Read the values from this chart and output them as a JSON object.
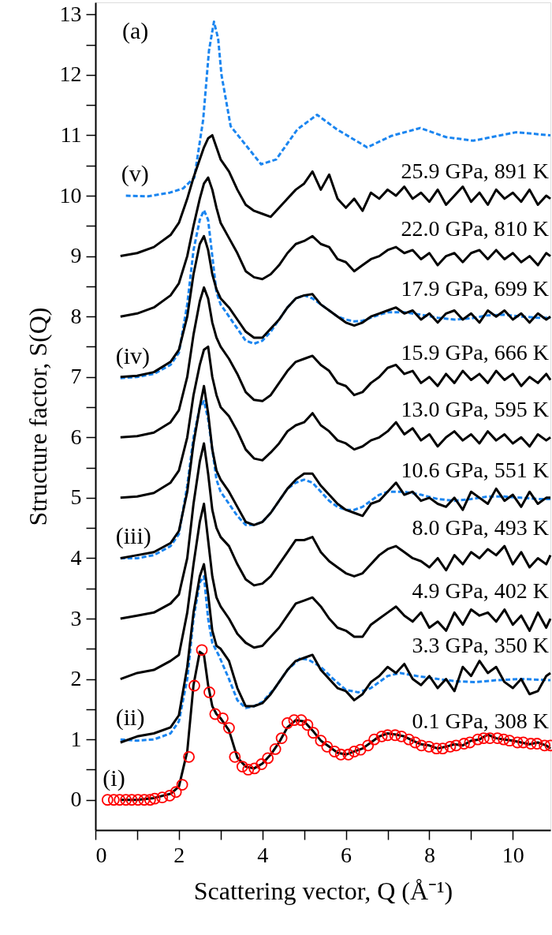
{
  "chart_data": {
    "type": "line",
    "xlabel": "Scattering vector, Q (Å⁻¹)",
    "ylabel": "Structure factor, S(Q)",
    "xlim": [
      0,
      10.9
    ],
    "ylim": [
      -0.5,
      13.2
    ],
    "xticks": [
      0,
      {
        "value": 1,
        "label": null
      },
      2,
      {
        "value": 3,
        "label": null
      },
      4,
      {
        "value": 5,
        "label": null
      },
      6,
      {
        "value": 7,
        "label": null
      },
      8,
      {
        "value": 9,
        "label": null
      },
      10
    ],
    "yticks": [
      0,
      {
        "value": 0.5,
        "label": null
      },
      1,
      {
        "value": 1.5,
        "label": null
      },
      2,
      {
        "value": 2.5,
        "label": null
      },
      3,
      {
        "value": 3.5,
        "label": null
      },
      4,
      {
        "value": 4.5,
        "label": null
      },
      5,
      {
        "value": 5.5,
        "label": null
      },
      6,
      {
        "value": 6.5,
        "label": null
      },
      7,
      {
        "value": 7.5,
        "label": null
      },
      8,
      {
        "value": 8.5,
        "label": null
      },
      9,
      {
        "value": 9.5,
        "label": null
      },
      10,
      {
        "value": 10.5,
        "label": null
      },
      11,
      {
        "value": 11.5,
        "label": null
      },
      12,
      {
        "value": 12.5,
        "label": null
      },
      13
    ],
    "x": [
      0.6,
      1.0,
      1.4,
      1.8,
      2.0,
      2.2,
      2.35,
      2.5,
      2.6,
      2.7,
      2.8,
      2.9,
      3.0,
      3.2,
      3.4,
      3.6,
      3.8,
      4.0,
      4.2,
      4.4,
      4.6,
      4.8,
      5.0,
      5.2,
      5.4,
      5.6,
      5.8,
      6.0,
      6.2,
      6.4,
      6.6,
      6.8,
      7.0,
      7.2,
      7.4,
      7.6,
      7.8,
      8.0,
      8.2,
      8.4,
      8.6,
      8.8,
      9.0,
      9.2,
      9.4,
      9.6,
      9.8,
      10.0,
      10.2,
      10.4,
      10.6,
      10.8,
      10.9
    ],
    "annotations": [
      "(a)"
    ],
    "series": [
      {
        "name": "(ii)",
        "color": "#1a85f0",
        "line_style": "dashed",
        "x": [
          0.6,
          1.0,
          1.4,
          1.8,
          2.0,
          2.2,
          2.35,
          2.5,
          2.6,
          2.7,
          2.8,
          2.95,
          3.2,
          3.4,
          3.6,
          3.8,
          4.0,
          4.3,
          4.6,
          4.9,
          5.1,
          5.4,
          5.7,
          6.0,
          6.3,
          6.6,
          7.0,
          7.3,
          7.7,
          8.2,
          8.7,
          9.1,
          9.6,
          10.2,
          10.9
        ],
        "values": [
          1.0,
          0.98,
          1.0,
          1.1,
          1.3,
          2.0,
          3.0,
          3.6,
          3.7,
          3.0,
          2.6,
          2.4,
          2.0,
          1.65,
          1.52,
          1.55,
          1.62,
          1.85,
          2.15,
          2.34,
          2.32,
          2.2,
          2.0,
          1.82,
          1.78,
          1.85,
          2.05,
          2.1,
          2.05,
          2.0,
          1.96,
          1.95,
          1.98,
          2.0,
          1.98
        ]
      },
      {
        "name": "(iii)",
        "color": "#1a85f0",
        "line_style": "dashed",
        "x": [
          0.6,
          1.0,
          1.4,
          1.8,
          2.0,
          2.2,
          2.35,
          2.5,
          2.6,
          2.7,
          2.8,
          2.9,
          3.0,
          3.2,
          3.4,
          3.6,
          3.8,
          4.0,
          4.2,
          4.4,
          4.6,
          4.8,
          5.0,
          5.2,
          5.4,
          5.6,
          5.8,
          6.0,
          6.2,
          6.4,
          6.6,
          6.8,
          7.0,
          7.4,
          7.8,
          8.2,
          8.6,
          9.0,
          9.4,
          9.8,
          10.2,
          10.6,
          10.9
        ],
        "values": [
          4.0,
          4.0,
          4.05,
          4.2,
          4.4,
          5.2,
          6.0,
          6.5,
          6.6,
          6.3,
          5.8,
          5.3,
          5.1,
          4.9,
          4.7,
          4.55,
          4.55,
          4.6,
          4.75,
          4.95,
          5.15,
          5.25,
          5.3,
          5.25,
          5.1,
          4.95,
          4.85,
          4.8,
          4.8,
          4.85,
          4.95,
          5.05,
          5.1,
          5.1,
          5.05,
          4.98,
          4.95,
          4.98,
          5.02,
          5.02,
          5.0,
          4.98,
          4.98
        ]
      },
      {
        "name": "(iv)",
        "color": "#1a85f0",
        "line_style": "dashed",
        "x": [
          0.6,
          1.0,
          1.4,
          1.8,
          2.0,
          2.2,
          2.35,
          2.5,
          2.6,
          2.7,
          2.8,
          2.9,
          3.0,
          3.2,
          3.4,
          3.6,
          3.8,
          4.0,
          4.2,
          4.4,
          4.6,
          4.8,
          5.0,
          5.2,
          5.4,
          5.6,
          5.8,
          6.0,
          6.2,
          6.4,
          6.6,
          6.8,
          7.0,
          7.4,
          7.8,
          8.2,
          8.6,
          9.0,
          9.4,
          9.8,
          10.2,
          10.6,
          10.9
        ],
        "values": [
          6.98,
          7.0,
          7.05,
          7.2,
          7.4,
          8.2,
          9.1,
          9.6,
          9.76,
          9.6,
          9.0,
          8.4,
          8.2,
          8.0,
          7.8,
          7.6,
          7.55,
          7.6,
          7.75,
          7.95,
          8.15,
          8.3,
          8.35,
          8.3,
          8.2,
          8.1,
          8.0,
          7.95,
          7.92,
          7.93,
          7.98,
          8.03,
          8.07,
          8.07,
          8.03,
          7.98,
          7.95,
          7.97,
          8.02,
          8.03,
          8.0,
          7.98,
          7.98
        ]
      },
      {
        "name": "(v)",
        "color": "#1a85f0",
        "line_style": "dashed",
        "x": [
          0.73,
          1.27,
          1.78,
          2.1,
          2.37,
          2.58,
          2.72,
          2.84,
          2.94,
          3.02,
          3.24,
          3.53,
          3.97,
          4.33,
          4.84,
          5.31,
          5.78,
          6.51,
          7.09,
          7.78,
          8.4,
          9.05,
          10.07,
          10.9
        ],
        "values": [
          10.0,
          9.99,
          10.05,
          10.12,
          10.3,
          11.25,
          12.4,
          12.88,
          12.6,
          12.0,
          11.15,
          10.9,
          10.52,
          10.6,
          11.1,
          11.34,
          11.1,
          10.8,
          10.99,
          11.12,
          10.97,
          10.91,
          11.05,
          11.0
        ]
      },
      {
        "name": "(i)",
        "type": "scatter",
        "marker": "circle",
        "color": "#ff0000",
        "x": [
          0.29,
          0.44,
          0.58,
          0.73,
          0.87,
          1.02,
          1.17,
          1.31,
          1.42,
          1.6,
          1.78,
          1.93,
          2.08,
          2.24,
          2.37,
          2.55,
          2.73,
          2.87,
          3.05,
          3.2,
          3.34,
          3.52,
          3.66,
          3.81,
          3.98,
          4.13,
          4.31,
          4.46,
          4.6,
          4.76,
          4.93,
          5.08,
          5.22,
          5.4,
          5.55,
          5.73,
          5.88,
          6.06,
          6.2,
          6.35,
          6.53,
          6.68,
          6.86,
          7.0,
          7.18,
          7.33,
          7.51,
          7.66,
          7.81,
          7.99,
          8.17,
          8.32,
          8.5,
          8.64,
          8.83,
          8.97,
          9.16,
          9.3,
          9.45,
          9.63,
          9.78,
          9.92,
          10.11,
          10.25,
          10.43,
          10.58,
          10.76,
          10.9
        ],
        "values": [
          0,
          0,
          0,
          0,
          0,
          0,
          0,
          0,
          0.02,
          0.04,
          0.07,
          0.13,
          0.25,
          0.71,
          1.89,
          2.48,
          1.78,
          1.42,
          1.35,
          1.19,
          0.71,
          0.55,
          0.5,
          0.52,
          0.59,
          0.69,
          0.84,
          1.02,
          1.27,
          1.32,
          1.32,
          1.24,
          1.11,
          0.98,
          0.88,
          0.8,
          0.75,
          0.75,
          0.8,
          0.83,
          0.9,
          1.0,
          1.05,
          1.07,
          1.07,
          1.05,
          1.0,
          0.95,
          0.9,
          0.88,
          0.85,
          0.85,
          0.88,
          0.9,
          0.93,
          0.95,
          1.0,
          1.02,
          1.02,
          1.02,
          1.0,
          0.98,
          0.95,
          0.95,
          0.93,
          0.93,
          0.9,
          0.9
        ]
      },
      {
        "name": "0.1 GPa, 308 K",
        "color": "#000000",
        "values": [
          0.0,
          0.0,
          0.03,
          0.1,
          0.22,
          0.8,
          1.9,
          2.45,
          2.4,
          1.9,
          1.55,
          1.42,
          1.35,
          1.15,
          0.7,
          0.55,
          0.52,
          0.6,
          0.75,
          0.95,
          1.2,
          1.32,
          1.3,
          1.15,
          0.98,
          0.88,
          0.78,
          0.75,
          0.8,
          0.85,
          0.95,
          1.05,
          1.1,
          1.08,
          1.05,
          0.98,
          0.92,
          0.9,
          0.85,
          0.88,
          0.92,
          0.9,
          0.98,
          1.0,
          1.08,
          1.02,
          1.0,
          0.98,
          0.95,
          0.92,
          0.95,
          0.9,
          0.85
        ]
      },
      {
        "name": "3.3 GPa, 350 K",
        "color": "#000000",
        "values": [
          0.95,
          1.05,
          1.1,
          1.2,
          1.4,
          2.2,
          3.1,
          3.7,
          3.9,
          3.4,
          2.8,
          2.55,
          2.5,
          2.3,
          1.85,
          1.55,
          1.55,
          1.6,
          1.75,
          1.95,
          2.15,
          2.3,
          2.35,
          2.4,
          2.15,
          2.0,
          1.85,
          1.8,
          1.65,
          1.75,
          1.95,
          2.05,
          2.2,
          2.1,
          2.25,
          2.0,
          1.9,
          2.05,
          1.85,
          2.0,
          1.8,
          2.2,
          2.05,
          2.3,
          2.1,
          2.2,
          1.95,
          1.85,
          2.0,
          1.75,
          1.8,
          2.05,
          2.1
        ]
      },
      {
        "name": "4.9 GPa, 402 K",
        "color": "#000000",
        "values": [
          2.0,
          2.1,
          2.15,
          2.3,
          2.4,
          3.1,
          3.9,
          4.6,
          4.9,
          4.3,
          3.7,
          3.35,
          3.2,
          3.0,
          2.75,
          2.6,
          2.52,
          2.55,
          2.7,
          2.85,
          3.05,
          3.25,
          3.3,
          3.35,
          3.2,
          3.0,
          2.85,
          2.8,
          2.7,
          2.7,
          2.9,
          3.0,
          3.1,
          3.2,
          3.05,
          2.95,
          3.1,
          2.85,
          2.95,
          2.8,
          3.1,
          2.9,
          3.15,
          3.05,
          3.1,
          2.95,
          3.15,
          2.9,
          3.05,
          2.8,
          3.1,
          2.85,
          3.0
        ]
      },
      {
        "name": "8.0 GPa, 493 K",
        "color": "#000000",
        "values": [
          3.0,
          3.05,
          3.1,
          3.25,
          3.4,
          4.0,
          4.9,
          5.6,
          5.9,
          5.4,
          4.8,
          4.5,
          4.35,
          4.2,
          3.9,
          3.65,
          3.55,
          3.58,
          3.7,
          3.9,
          4.1,
          4.3,
          4.3,
          4.35,
          4.1,
          3.95,
          3.85,
          3.75,
          3.7,
          3.75,
          3.9,
          4.05,
          4.15,
          4.2,
          4.1,
          4.0,
          3.95,
          3.85,
          4.0,
          3.8,
          4.05,
          3.9,
          4.1,
          4.0,
          4.15,
          4.05,
          4.2,
          3.9,
          4.1,
          3.85,
          4.0,
          3.9,
          4.05
        ]
      },
      {
        "name": "10.6 GPa, 551 K",
        "color": "#000000",
        "values": [
          4.0,
          4.05,
          4.1,
          4.25,
          4.45,
          5.1,
          5.9,
          6.5,
          6.85,
          6.4,
          5.8,
          5.45,
          5.3,
          5.1,
          4.85,
          4.6,
          4.55,
          4.6,
          4.75,
          4.95,
          5.15,
          5.3,
          5.4,
          5.4,
          5.2,
          5.05,
          4.9,
          4.8,
          4.75,
          4.7,
          4.9,
          4.95,
          5.1,
          5.25,
          5.05,
          5.1,
          4.95,
          5.0,
          4.9,
          4.85,
          5.0,
          4.8,
          5.1,
          5.0,
          4.9,
          5.15,
          4.95,
          5.05,
          4.85,
          5.1,
          4.9,
          5.0,
          5.0
        ]
      },
      {
        "name": "13.0 GPa, 595 K",
        "color": "#000000",
        "values": [
          5.0,
          5.02,
          5.08,
          5.25,
          5.45,
          6.0,
          6.7,
          7.2,
          7.45,
          7.5,
          7.0,
          6.7,
          6.5,
          6.35,
          6.1,
          5.8,
          5.65,
          5.62,
          5.75,
          5.9,
          6.1,
          6.2,
          6.25,
          6.4,
          6.2,
          6.1,
          5.95,
          5.9,
          5.8,
          5.85,
          5.95,
          6.0,
          6.1,
          6.25,
          6.05,
          6.15,
          5.95,
          6.05,
          5.85,
          6.0,
          6.1,
          5.95,
          6.05,
          5.9,
          6.1,
          5.95,
          6.05,
          5.9,
          6.0,
          5.85,
          6.05,
          5.95,
          6.0
        ]
      },
      {
        "name": "15.9 GPa, 666 K",
        "color": "#000000",
        "values": [
          6.0,
          6.02,
          6.08,
          6.25,
          6.45,
          7.0,
          7.7,
          8.25,
          8.48,
          8.3,
          7.9,
          7.65,
          7.5,
          7.3,
          7.05,
          6.75,
          6.62,
          6.6,
          6.7,
          6.9,
          7.1,
          7.25,
          7.3,
          7.35,
          7.2,
          7.1,
          6.9,
          6.85,
          6.7,
          6.75,
          6.9,
          7.0,
          7.15,
          7.2,
          7.05,
          7.1,
          6.9,
          7.0,
          6.85,
          7.05,
          6.9,
          7.1,
          6.95,
          7.05,
          6.9,
          7.1,
          6.95,
          7.05,
          6.85,
          7.0,
          6.9,
          7.05,
          6.95
        ]
      },
      {
        "name": "17.9 GPa, 699 K",
        "color": "#000000",
        "values": [
          7.0,
          7.02,
          7.08,
          7.25,
          7.45,
          8.0,
          8.7,
          9.2,
          9.33,
          9.1,
          8.7,
          8.45,
          8.3,
          8.15,
          7.95,
          7.75,
          7.65,
          7.65,
          7.8,
          7.95,
          8.15,
          8.3,
          8.35,
          8.37,
          8.2,
          8.1,
          8.0,
          7.9,
          7.85,
          7.9,
          8.0,
          8.05,
          8.1,
          8.15,
          8.05,
          8.1,
          7.95,
          8.05,
          7.9,
          8.05,
          8.1,
          7.95,
          8.05,
          7.9,
          8.1,
          8.0,
          8.1,
          7.95,
          8.05,
          7.9,
          8.05,
          7.95,
          8.0
        ]
      },
      {
        "name": "22.0 GPa, 810 K",
        "color": "#000000",
        "values": [
          8.0,
          8.05,
          8.15,
          8.35,
          8.55,
          9.0,
          9.5,
          9.95,
          10.2,
          10.3,
          10.1,
          9.8,
          9.55,
          9.3,
          9.05,
          8.75,
          8.65,
          8.62,
          8.7,
          8.85,
          9.05,
          9.2,
          9.25,
          9.33,
          9.2,
          9.15,
          8.95,
          8.9,
          8.75,
          8.85,
          8.95,
          9.0,
          9.1,
          9.15,
          9.05,
          9.1,
          8.95,
          9.05,
          8.85,
          9.0,
          9.05,
          8.9,
          9.05,
          9.1,
          8.95,
          9.1,
          8.95,
          9.05,
          8.9,
          9.0,
          8.85,
          9.05,
          9.0
        ]
      },
      {
        "name": "25.9 GPa, 891 K",
        "color": "#000000",
        "values": [
          9.0,
          9.05,
          9.15,
          9.35,
          9.55,
          9.95,
          10.3,
          10.6,
          10.8,
          10.95,
          11.0,
          10.8,
          10.6,
          10.4,
          10.1,
          9.85,
          9.75,
          9.7,
          9.65,
          9.8,
          9.95,
          10.1,
          10.2,
          10.4,
          10.1,
          10.35,
          9.95,
          9.8,
          9.95,
          9.75,
          10.05,
          9.95,
          10.1,
          10.0,
          10.15,
          9.95,
          10.05,
          9.9,
          10.1,
          9.85,
          10.0,
          10.15,
          9.9,
          10.05,
          9.85,
          10.1,
          9.95,
          10.05,
          9.9,
          10.1,
          9.85,
          10.0,
          9.95
        ]
      }
    ]
  }
}
